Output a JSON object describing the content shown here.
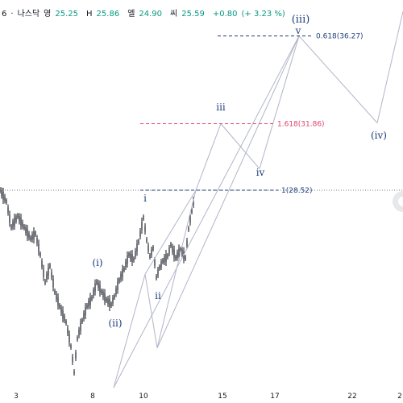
{
  "header": {
    "symbol_fragment": "6",
    "separator": "·",
    "exchange": "나스닥",
    "open_label": "영",
    "open": "25.25",
    "high_label": "H",
    "high": "25.86",
    "low_label": "엘",
    "low": "24.90",
    "close_label": "씨",
    "close": "25.59",
    "change": "+0.80",
    "change_pct": "(+ 3.23 %)"
  },
  "colors": {
    "candle": "#131722",
    "wave_line": "#b2b5c9",
    "wave_label": "#1f3f7a",
    "fib_blue": "#1f3f7a",
    "fib_pink": "#e0406a",
    "price_line": "#787b86"
  },
  "chart_data": {
    "type": "candlestick",
    "x_ticks": [
      "3",
      "8",
      "10",
      "15",
      "17",
      "22",
      "2"
    ],
    "fib_levels": [
      {
        "label": "0.618(36.27)",
        "value": 36.27,
        "color_key": "fib_blue"
      },
      {
        "label": "1.618(31.86)",
        "value": 31.86,
        "color_key": "fib_pink"
      },
      {
        "label": "1(28.52)",
        "value": 28.52,
        "color_key": "fib_blue"
      }
    ],
    "wave_labels": [
      "(i)",
      "(ii)",
      "i",
      "ii",
      "iii",
      "iv",
      "v",
      "(iii)",
      "(iv)"
    ],
    "wave_path": [
      {
        "label": "(ii)",
        "price": 18.6
      },
      {
        "label": "i",
        "price": 24.3
      },
      {
        "label": "ii",
        "price": 20.6
      },
      {
        "label": "1",
        "price": 28.52
      },
      {
        "label": "iii",
        "price": 31.86
      },
      {
        "label": "iv",
        "price": 29.6
      },
      {
        "label": "v",
        "price": 36.27
      },
      {
        "label": "(iv)",
        "price": 31.9
      },
      {
        "label": "end",
        "price": 37.5
      }
    ]
  }
}
